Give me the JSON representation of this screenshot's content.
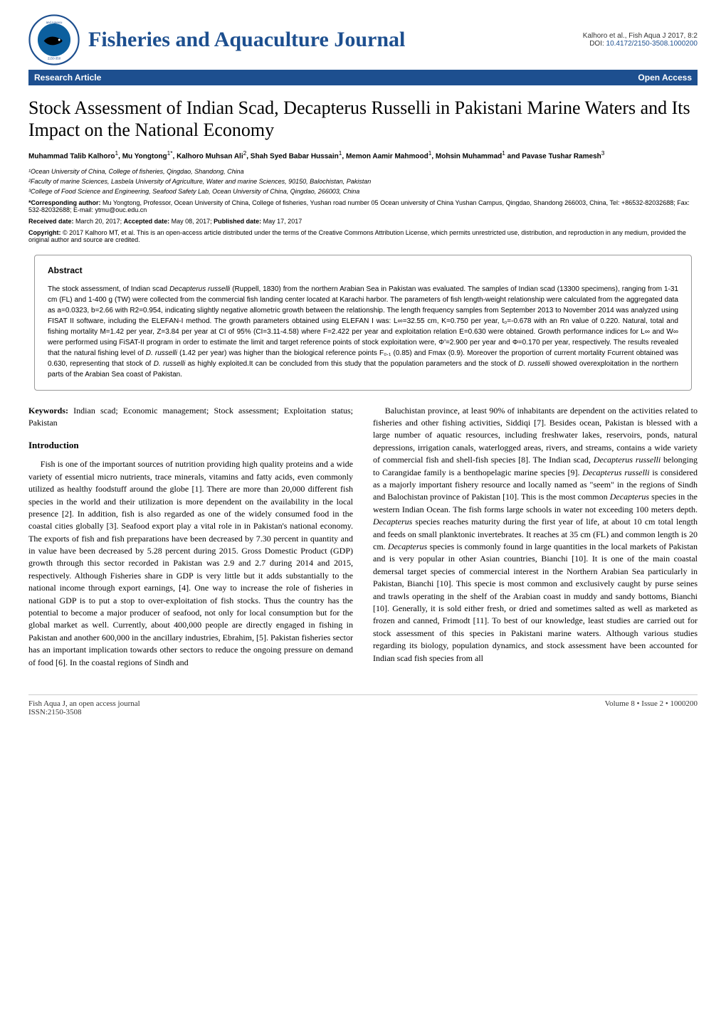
{
  "header": {
    "journal_name": "Fisheries and Aquaculture Journal",
    "citation": "Kalhoro et al., Fish Aqua J 2017, 8:2",
    "doi_label": "DOI: ",
    "doi": "10.4172/2150-3508.1000200",
    "banner_left": "Research Article",
    "banner_right": "Open Access",
    "logo_colors": {
      "ring": "#1d4f8f",
      "inner": "#0c5f9e",
      "black": "#000000"
    },
    "logo_text_top": "and Aquacu",
    "logo_text_bottom": "2150-350"
  },
  "article": {
    "title": "Stock Assessment of Indian Scad, Decapterus Russelli in Pakistani Marine Waters and Its Impact on the National Economy",
    "authors_html": "Muhammad Talib Kalhoro<sup>1</sup>, Mu Yongtong<sup>1*</sup>, Kalhoro Muhsan Ali<sup>2</sup>, Shah Syed Babar Hussain<sup>1</sup>, Memon Aamir Mahmood<sup>1</sup>, Mohsin Muhammad<sup>1</sup> and Pavase Tushar Ramesh<sup>3</sup>",
    "affiliations": [
      "¹Ocean University of China, College of fisheries, Qingdao, Shandong, China",
      "²Faculty of marine Sciences, Lasbela University of Agriculture, Water and marine Sciences, 90150, Balochistan, Pakistan",
      "³College of Food Science and Engineering, Seafood Safety Lab, Ocean University of China, Qingdao, 266003, China"
    ],
    "corresponding": "*Corresponding author: Mu Yongtong, Professor, Ocean University of China, College of fisheries, Yushan road number 05 Ocean university of China Yushan Campus, Qingdao, Shandong 266003, China, Tel: +86532-82032688; Fax: 532-82032688; E-mail: ytmu@ouc.edu.cn",
    "dates": "Received date: March 20, 2017; Accepted date: May 08, 2017; Published date: May 17, 2017",
    "copyright": "Copyright: © 2017 Kalhoro MT, et al. This is an open-access article distributed under the terms of the Creative Commons Attribution License, which permits unrestricted use, distribution, and reproduction in any medium, provided the original author and source are credited."
  },
  "abstract": {
    "heading": "Abstract",
    "text": "The stock assessment, of Indian scad Decapterus russelli (Ruppell, 1830) from the northern Arabian Sea in Pakistan was evaluated. The samples of Indian scad (13300 specimens), ranging from 1-31 cm (FL) and 1-400 g (TW) were collected from the commercial fish landing center located at Karachi harbor. The parameters of fish length-weight relationship were calculated from the aggregated data as a=0.0323, b=2.66 with R2=0.954, indicating slightly negative allometric growth between the relationship. The length frequency samples from September 2013 to November 2014 was analyzed using FISAT II software, including the ELEFAN-I method. The growth parameters obtained using ELEFAN I was: L∞=32.55 cm, K=0.750 per year, t₀=-0.678 with an Rn value of 0.220. Natural, total and fishing mortality M=1.42 per year, Z=3.84 per year at CI of 95% (CI=3.11-4.58) where F=2.422 per year and exploitation relation E=0.630 were obtained. Growth performance indices for L∞ and W∞ were performed using FiSAT-II program in order to estimate the limit and target reference points of stock exploitation were, Φ'=2.900 per year and Φ=0.170 per year, respectively. The results revealed that the natural fishing level of D. russelli (1.42 per year) was higher than the biological reference points F₀.₁ (0.85) and Fmax (0.9). Moreover the proportion of current mortality Fcurrent obtained was 0.630, representing that stock of D. russelli as highly exploited.It can be concluded from this study that the population parameters and the stock of D. russelli showed overexploitation in the northern parts of the Arabian Sea coast of Pakistan."
  },
  "body": {
    "keywords_label": "Keywords:",
    "keywords": " Indian scad; Economic management; Stock assessment; Exploitation status; Pakistan",
    "intro_heading": "Introduction",
    "col1_para": "Fish is one of the important sources of nutrition providing high quality proteins and a wide variety of essential micro nutrients, trace minerals, vitamins and fatty acids, even commonly utilized as healthy foodstuff around the globe [1]. There are more than 20,000 different fish species in the world and their utilization is more dependent on the availability in the local presence [2]. In addition, fish is also regarded as one of the widely consumed food in the coastal cities globally [3]. Seafood export play a vital role in in Pakistan's national economy. The exports of fish and fish preparations have been decreased by 7.30 percent in quantity and in value have been decreased by 5.28 percent during 2015. Gross Domestic Product (GDP) growth through this sector recorded in Pakistan was 2.9 and 2.7 during 2014 and 2015, respectively. Although Fisheries share in GDP is very little but it adds substantially to the national income through export earnings, [4]. One way to increase the role of fisheries in national GDP is to put a stop to over-exploitation of fish stocks. Thus the country has the potential to become a major producer of seafood, not only for local consumption but for the global market as well. Currently, about 400,000 people are directly engaged in fishing in Pakistan and another 600,000 in the ancillary industries, Ebrahim, [5]. Pakistan fisheries sector has an important implication towards other sectors to reduce the ongoing pressure on demand of food [6]. In the coastal regions of Sindh and",
    "col2_para": "Baluchistan province, at least 90% of inhabitants are dependent on the activities related to fisheries and other fishing activities, Siddiqi [7]. Besides ocean, Pakistan is blessed with a large number of aquatic resources, including freshwater lakes, reservoirs, ponds, natural depressions, irrigation canals, waterlogged areas, rivers, and streams, contains a wide variety of commercial fish and shell-fish species [8]. The Indian scad, Decapterus russelli belonging to Carangidae family is a benthopelagic marine species [9]. Decapterus russelli is considered as a majorly important fishery resource and locally named as \"seem\" in the regions of Sindh and Balochistan province of Pakistan [10]. This is the most common Decapterus species in the western Indian Ocean. The fish forms large schools in water not exceeding 100 meters depth. Decapterus species reaches maturity during the first year of life, at about 10 cm total length and feeds on small planktonic invertebrates. It reaches at 35 cm (FL) and common length is 20 cm. Decapterus species is commonly found in large quantities in the local markets of Pakistan and is very popular in other Asian countries, Bianchi [10]. It is one of the main coastal demersal target species of commercial interest in the Northern Arabian Sea particularly in Pakistan, Bianchi [10]. This specie is most common and exclusively caught by purse seines and trawls operating in the shelf of the Arabian coast in muddy and sandy bottoms, Bianchi [10]. Generally, it is sold either fresh, or dried and sometimes salted as well as marketed as frozen and canned, Frimodt [11]. To best of our knowledge, least studies are carried out for stock assessment of this species in Pakistani marine waters. Although various studies regarding its biology, population dynamics, and stock assessment have been accounted for Indian scad fish species from all"
  },
  "footer": {
    "left_line1": "Fish Aqua J, an open access journal",
    "left_line2": "ISSN:2150-3508",
    "right": "Volume 8 • Issue 2 • 1000200"
  },
  "colors": {
    "brand_blue": "#1d4f8f",
    "text": "#000000",
    "background": "#ffffff",
    "border": "#999999"
  }
}
